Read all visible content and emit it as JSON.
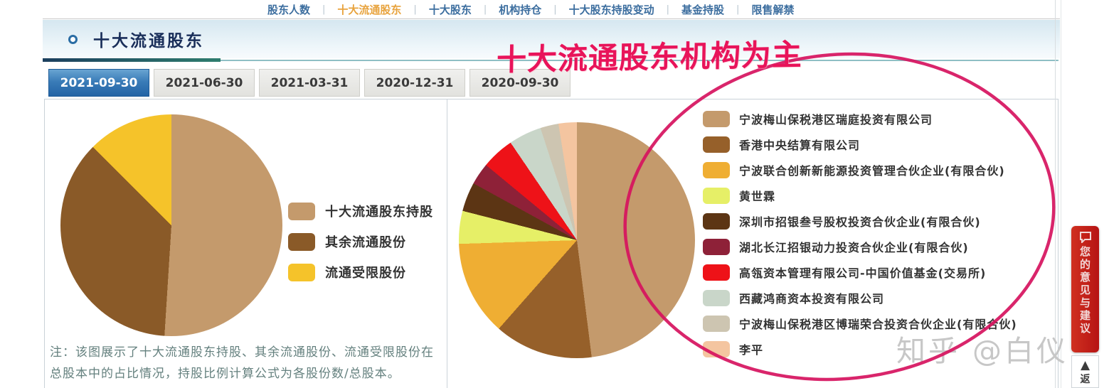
{
  "nav": {
    "items": [
      {
        "label": "股东人数",
        "active": false
      },
      {
        "label": "十大流通股东",
        "active": true
      },
      {
        "label": "十大股东",
        "active": false
      },
      {
        "label": "机构持仓",
        "active": false
      },
      {
        "label": "十大股东持股变动",
        "active": false
      },
      {
        "label": "基金持股",
        "active": false
      },
      {
        "label": "限售解禁",
        "active": false
      }
    ]
  },
  "section": {
    "title": "十大流通股东"
  },
  "annotation": {
    "text": "十大流通股东机构为主",
    "color": "#e8145a"
  },
  "date_tabs": [
    {
      "label": "2021-09-30",
      "active": true
    },
    {
      "label": "2021-06-30",
      "active": false
    },
    {
      "label": "2021-03-31",
      "active": false
    },
    {
      "label": "2020-12-31",
      "active": false
    },
    {
      "label": "2020-09-30",
      "active": false
    }
  ],
  "chart_data": [
    {
      "type": "pie",
      "title": "",
      "labels": [
        "十大流通股东持股",
        "其余流通股份",
        "流通受限股份"
      ],
      "values": [
        51,
        36.5,
        12.5
      ],
      "unit": "percent-estimated-from-pixels",
      "colors": [
        "#c49a6c",
        "#8a5a28",
        "#f5c32a"
      ],
      "legend_position": "right",
      "start_angle_deg": 0,
      "direction": "clockwise"
    },
    {
      "type": "pie",
      "title": "",
      "labels": [
        "宁波梅山保税港区瑞庭投资有限公司",
        "香港中央结算有限公司",
        "宁波联合创新新能源投资管理合伙企业(有限合伙)",
        "黄世霖",
        "深圳市招银叁号股权投资合伙企业(有限合伙)",
        "湖北长江招银动力投资合伙企业(有限合伙)",
        "高瓴资本管理有限公司-中国价值基金(交易所)",
        "西藏鸿商资本投资有限公司",
        "宁波梅山保税港区博瑞荣合投资合伙企业(有限合伙)",
        "李平"
      ],
      "values": [
        48,
        13.5,
        13,
        4.5,
        4,
        3,
        4.5,
        4.5,
        2.5,
        2.5
      ],
      "unit": "percent-estimated-from-pixels",
      "colors": [
        "#c49a6c",
        "#96602a",
        "#efae33",
        "#e6ef67",
        "#5c3514",
        "#8e2138",
        "#ee1218",
        "#c9d6c9",
        "#cdc5b1",
        "#f4c5a0"
      ],
      "legend_position": "right",
      "start_angle_deg": 0,
      "direction": "clockwise"
    }
  ],
  "note": {
    "text": "注：该图展示了十大流通股东持股、其余流通股份、流通受限股份在总股本中的占比情况，持股比例计算公式为各股份数/总股本。"
  },
  "watermark": {
    "text": "知乎 @白仪"
  },
  "feedback_tab": {
    "label": "您的意见与建议"
  },
  "back_to_top": {
    "arrow": "▲",
    "label": "返"
  },
  "colors": {
    "accent_circle": "#d6125e",
    "nav_active": "#e8a33d",
    "active_tab": "#2263a5",
    "feedback_red": "#b61414"
  }
}
